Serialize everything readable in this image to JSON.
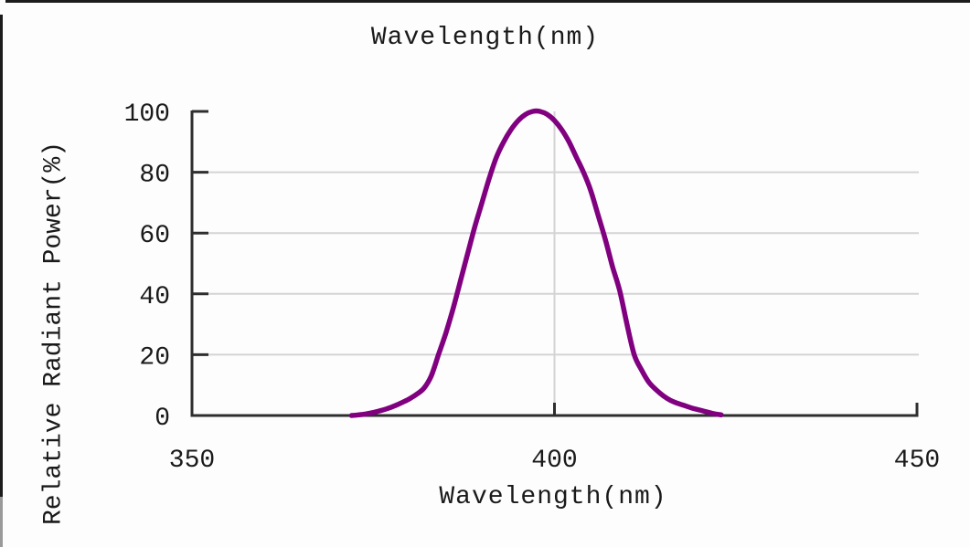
{
  "chart_data": {
    "type": "line",
    "title": "Wavelength(nm)",
    "xlabel": "Wavelength(nm)",
    "ylabel": "Relative Radiant Power(%)",
    "xlim": [
      350,
      450
    ],
    "ylim": [
      0,
      100
    ],
    "x_ticks": [
      350,
      400,
      450
    ],
    "y_ticks": [
      0,
      20,
      40,
      60,
      80,
      100
    ],
    "grid": true,
    "legend_position": "none",
    "colors": {
      "curve": "#800080",
      "grid": "#d4d4d4",
      "axis": "#2e2e2e",
      "text": "#1a1a1a"
    },
    "series": [
      {
        "name": "relative-radiant-power",
        "color": "#800080",
        "peak_nm": 398,
        "x": [
          372,
          373,
          374,
          375,
          376,
          377,
          378,
          379,
          380,
          381,
          382,
          383,
          384,
          385,
          386,
          387,
          388,
          389,
          390,
          391,
          392,
          393,
          394,
          395,
          396,
          397,
          398,
          399,
          400,
          401,
          402,
          403,
          404,
          405,
          406,
          407,
          408,
          409,
          410,
          411,
          412,
          413,
          414,
          415,
          416,
          417,
          418,
          419,
          420,
          421,
          422,
          423
        ],
        "y": [
          0,
          0.2,
          0.5,
          1,
          1.6,
          2.3,
          3.2,
          4.3,
          5.5,
          7,
          9,
          13,
          20,
          27,
          35,
          44,
          53,
          62,
          70,
          78,
          85,
          90,
          94,
          97,
          99,
          100,
          100,
          99,
          97,
          94,
          90,
          85,
          80,
          74,
          66,
          58,
          49,
          41,
          30,
          20,
          15,
          11,
          8.5,
          6.5,
          5,
          4,
          3.2,
          2.4,
          1.8,
          1.2,
          0.6,
          0.2
        ]
      }
    ]
  }
}
